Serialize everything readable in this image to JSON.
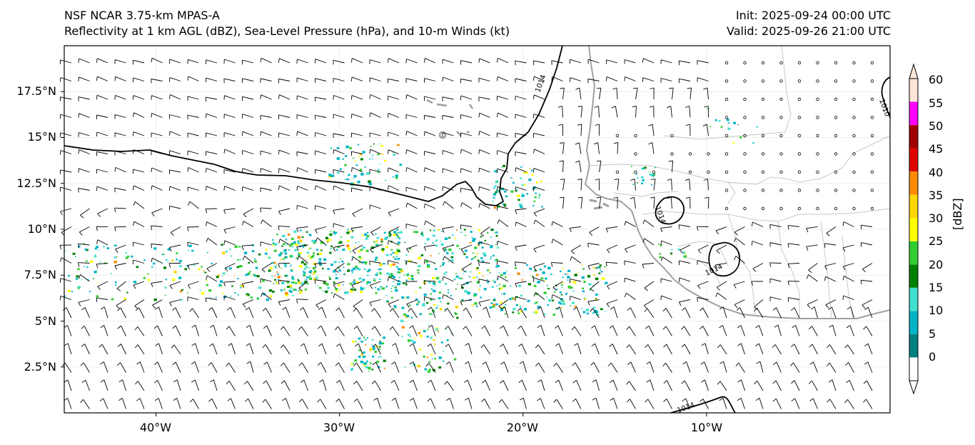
{
  "header": {
    "model_title": "NSF NCAR 3.75-km MPAS-A",
    "fields_title": "Reflectivity at 1 km AGL (dBZ), Sea-Level Pressure (hPa), and 10-m Winds (kt)",
    "init_time": "Init: 2025-09-24 00:00 UTC",
    "valid_time": "Valid: 2025-09-26 21:00 UTC"
  },
  "map": {
    "lon_range": [
      -45,
      0
    ],
    "lat_range": [
      0,
      20
    ],
    "lat_ticks": [
      "17.5°N",
      "15°N",
      "12.5°N",
      "10°N",
      "7.5°N",
      "5°N",
      "2.5°N"
    ],
    "lon_ticks": [
      "40°W",
      "30°W",
      "20°W",
      "10°W"
    ],
    "grid": true,
    "coastline_color": "#a0a0a0",
    "border_color": "#c0c0c0",
    "isobar_color": "#000000",
    "isobar_labels": [
      "1014",
      "1014",
      "1014",
      "1014",
      "1010"
    ]
  },
  "colorbar": {
    "label": "[dBZ]",
    "ticks": [
      "0",
      "5",
      "10",
      "15",
      "20",
      "25",
      "30",
      "35",
      "40",
      "45",
      "50",
      "55",
      "60"
    ],
    "colors": [
      "#ffffff",
      "#008080",
      "#00b4c8",
      "#40e0d0",
      "#008000",
      "#32cd32",
      "#ffff00",
      "#ffd700",
      "#ff8c00",
      "#e00000",
      "#a00000",
      "#ff00ff",
      "#ffe4d8"
    ]
  }
}
